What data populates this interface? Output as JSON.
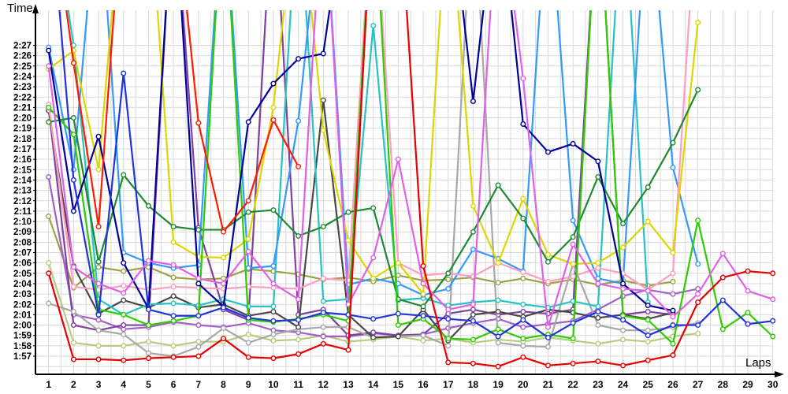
{
  "page": {
    "y_axis_title": "Time",
    "x_axis_title": "Laps"
  },
  "chart_data": {
    "type": "line",
    "title": "",
    "xlabel": "Laps",
    "ylabel": "Time",
    "legend": "none",
    "grid": true,
    "x": [
      1,
      2,
      3,
      4,
      5,
      6,
      7,
      8,
      9,
      10,
      11,
      12,
      13,
      14,
      15,
      16,
      17,
      18,
      19,
      20,
      21,
      22,
      23,
      24,
      25,
      26,
      27,
      28,
      29,
      30
    ],
    "y_tick_labels": [
      "1:57",
      "1:58",
      "1:59",
      "2:00",
      "2:01",
      "2:02",
      "2:03",
      "2:04",
      "2:05",
      "2:06",
      "2:07",
      "2:08",
      "2:09",
      "2:10",
      "2:11",
      "2:12",
      "2:13",
      "2:14",
      "2:15",
      "2:16",
      "2:17",
      "2:18",
      "2:19",
      "2:20",
      "2:21",
      "2:22",
      "2:23",
      "2:24",
      "2:25",
      "2:26",
      "2:27"
    ],
    "y_axis_seconds_range": [
      115.3,
      150.2
    ],
    "values_unit": "lap time in seconds; null = no lap recorded; 163 = spike off the top of the chart",
    "series": [
      {
        "id": "driver-palegreen",
        "color_name": "pale-green",
        "color": "#b6cc7e",
        "values": [
          126,
          118.3,
          118,
          118,
          118.4,
          118,
          118.4,
          118.4,
          119.1,
          118.5,
          118.6,
          119,
          118.4,
          118.6,
          118.9,
          118.5,
          118.7,
          118.3,
          118.6,
          118.4,
          118.8,
          118.5,
          118.2,
          118.6,
          118.4,
          118.9,
          119.2,
          null,
          null,
          null
        ]
      },
      {
        "id": "driver-olive",
        "color_name": "olive",
        "color": "#a0a048",
        "values": [
          130.5,
          123.6,
          125.6,
          125.2,
          125.6,
          124.6,
          124.4,
          124.5,
          125.4,
          125.2,
          124.9,
          124.4,
          124.6,
          124.2,
          124.8,
          124.3,
          124.4,
          124.6,
          124.1,
          124.5,
          124,
          124.4,
          123.9,
          124.3,
          123.8,
          124.2,
          null,
          null,
          null,
          null
        ]
      },
      {
        "id": "driver-violet",
        "color_name": "light-purple",
        "color": "#a060c8",
        "values": [
          134.3,
          121,
          120.5,
          119.6,
          119.8,
          120.3,
          120,
          119.8,
          120.2,
          119.5,
          119.3,
          118.9,
          118.9,
          119.2,
          119,
          119.1,
          119.7,
          120.2,
          120.6,
          119.8,
          120.1,
          120.4,
          121.5,
          122.8,
          123.4,
          123,
          123.5,
          null,
          null,
          null
        ]
      },
      {
        "id": "driver-purple",
        "color_name": "dark-purple",
        "color": "#8040a0",
        "values": [
          141,
          120,
          119.5,
          120,
          120,
          163,
          129.4,
          121.5,
          120.5,
          163,
          121,
          121.5,
          119,
          119.3,
          119,
          119.1,
          121.1,
          121.5,
          121,
          121.3,
          121.1,
          121.5,
          163,
          121,
          121.3,
          121,
          null,
          null,
          null,
          null
        ]
      },
      {
        "id": "driver-gray",
        "color_name": "gray",
        "color": "#a8a8a8",
        "values": [
          122.1,
          121.3,
          119.5,
          119.1,
          117.3,
          117,
          117.9,
          119.7,
          118.3,
          119.1,
          119.6,
          119.8,
          119.8,
          118.8,
          118.9,
          119,
          118,
          163,
          118.3,
          118,
          117.9,
          125.9,
          120,
          119.5,
          119.5,
          119.8,
          120.2,
          null,
          null,
          null
        ]
      },
      {
        "id": "driver-darkgray",
        "color_name": "dark-gray",
        "color": "#484848",
        "values": [
          140.7,
          125.7,
          121.1,
          122.4,
          121.7,
          122.8,
          121.7,
          122,
          120.9,
          121.3,
          119.8,
          141.7,
          121,
          118.8,
          118.9,
          121.5,
          118.5,
          121,
          121.3,
          120.8,
          121.5,
          121.2,
          120.7,
          121,
          120.6,
          121.2,
          null,
          null,
          null,
          null
        ]
      },
      {
        "id": "driver-cyan",
        "color_name": "cyan",
        "color": "#26c2c6",
        "values": [
          163,
          147,
          122.5,
          121,
          122,
          122.1,
          121.9,
          122.5,
          121.8,
          121.8,
          163,
          122.3,
          122.5,
          148.9,
          122.4,
          122.6,
          121.9,
          122.2,
          122.4,
          122,
          121.7,
          122.3,
          121.8,
          163,
          122.2,
          null,
          null,
          null,
          null,
          null
        ]
      },
      {
        "id": "driver-dodger",
        "color_name": "light-blue",
        "color": "#3399ff",
        "values": [
          146.8,
          135,
          163,
          127,
          126,
          125.5,
          125.8,
          163,
          125.5,
          125.7,
          139.7,
          163,
          123.9,
          124.5,
          124,
          122.9,
          123.5,
          127.3,
          126.4,
          125.2,
          163,
          130.1,
          124.5,
          124,
          163,
          135.2,
          125.9,
          null,
          null,
          null
        ]
      },
      {
        "id": "driver-pink",
        "color_name": "pink",
        "color": "#ff9ec0",
        "values": [
          141.3,
          123.7,
          123.4,
          123.8,
          123.4,
          123.7,
          123.6,
          123.5,
          123.7,
          123.6,
          123.5,
          124.5,
          124.3,
          163,
          126,
          124.8,
          125,
          124.7,
          126,
          125.1,
          124.2,
          124.7,
          125.5,
          125,
          123.4,
          125,
          163,
          null,
          null,
          null
        ]
      },
      {
        "id": "driver-yellow",
        "color_name": "yellow",
        "color": "#ddd600",
        "values": [
          144.7,
          146.5,
          135,
          163,
          163,
          128,
          126.6,
          126.5,
          128.3,
          141,
          163,
          138.8,
          128.2,
          124.5,
          126,
          123,
          163,
          131.5,
          126,
          132.2,
          126.8,
          125.9,
          126,
          127.5,
          130,
          127,
          149.2,
          null,
          null,
          null
        ]
      },
      {
        "id": "driver-forest",
        "color_name": "dark-green",
        "color": "#1e8a30",
        "values": [
          139.6,
          140,
          126.1,
          134.5,
          131.5,
          129.5,
          129.2,
          129.2,
          130.9,
          131.1,
          128.6,
          129.5,
          130.9,
          131.3,
          122.5,
          121.8,
          125,
          129,
          133.5,
          130.3,
          126.1,
          128.5,
          134.3,
          129.8,
          133.3,
          137.6,
          142.7,
          null,
          null,
          null
        ]
      },
      {
        "id": "driver-lime",
        "color_name": "bright-green",
        "color": "#2ecc00",
        "values": [
          141,
          138.4,
          121.5,
          121,
          120,
          120.4,
          120.9,
          163,
          120.5,
          120.3,
          120.6,
          121,
          120.4,
          163,
          120,
          120.6,
          118.7,
          118.6,
          119.6,
          118.7,
          119.1,
          118.7,
          163,
          120.9,
          120.5,
          118.2,
          130.1,
          119.6,
          121.2,
          118.9
        ]
      },
      {
        "id": "driver-navy",
        "color_name": "navy",
        "color": "#000099",
        "values": [
          146.5,
          131,
          138.2,
          126,
          121.6,
          163,
          124,
          121.8,
          139.6,
          143.3,
          145.7,
          146.2,
          163,
          163,
          163,
          163,
          163,
          141.6,
          163,
          139.4,
          136.7,
          137.5,
          135.8,
          124,
          121.9,
          121.4,
          null,
          null,
          null,
          null
        ]
      },
      {
        "id": "driver-blue",
        "color_name": "blue",
        "color": "#2233dd",
        "values": [
          163,
          134,
          121,
          144.3,
          121.5,
          120.9,
          120.9,
          121.7,
          120.7,
          120.4,
          120.5,
          121.2,
          121,
          120.6,
          121.1,
          120.9,
          120.6,
          120.4,
          118.9,
          120.5,
          118.8,
          120.2,
          121.3,
          120.5,
          119,
          120,
          120,
          122.4,
          120.1,
          120.4
        ]
      },
      {
        "id": "driver-orchid",
        "color_name": "magenta",
        "color": "#e060e8",
        "values": [
          145,
          125.6,
          124,
          123.1,
          126.2,
          125.8,
          124.5,
          124,
          127.1,
          124,
          122.5,
          163,
          122,
          126.5,
          136,
          124,
          121.5,
          122,
          163,
          143.8,
          119.8,
          127.8,
          124,
          123.5,
          123.3,
          120.8,
          123,
          126.9,
          123.3,
          122.5
        ]
      },
      {
        "id": "driver-red2",
        "color_name": "red-second",
        "color": "#ff1a00",
        "values": [
          163,
          145.3,
          129.5,
          163,
          163,
          163,
          139.5,
          129,
          132,
          139.8,
          135.3,
          null,
          null,
          null,
          null,
          null,
          null,
          null,
          null,
          null,
          null,
          null,
          null,
          null,
          null,
          null,
          null,
          null,
          null,
          null
        ]
      },
      {
        "id": "driver-red",
        "color_name": "red",
        "color": "#e60000",
        "values": [
          125,
          116.7,
          116.7,
          116.6,
          116.8,
          116.9,
          117,
          118.7,
          116.9,
          116.8,
          117.2,
          118.2,
          117.6,
          163,
          163,
          125.7,
          116.4,
          116.3,
          116,
          116.9,
          116.1,
          116.3,
          116.5,
          116.1,
          116.6,
          117.1,
          122.2,
          124.6,
          125.2,
          125
        ]
      }
    ]
  }
}
